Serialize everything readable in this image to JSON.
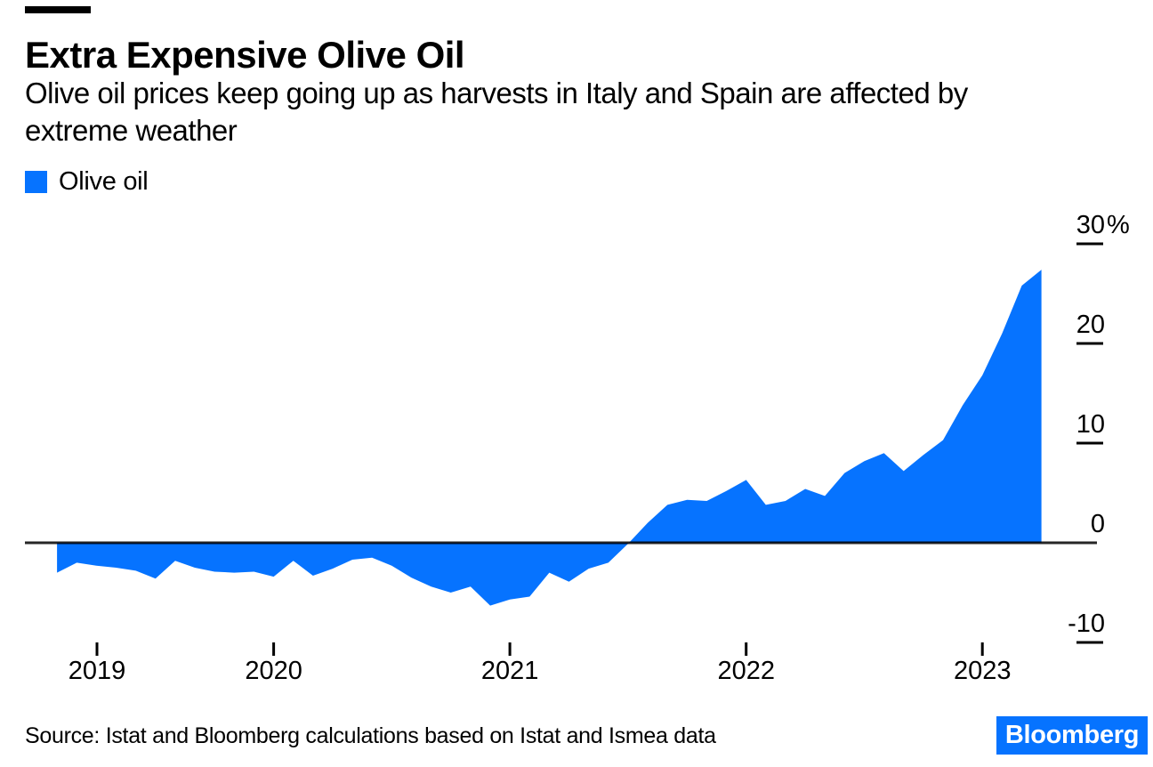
{
  "header": {
    "title": "Extra Expensive Olive Oil",
    "subtitle_lines": [
      "Olive oil prices keep going up as harvests in Italy and Spain are affected by",
      "extreme weather"
    ]
  },
  "legend": {
    "label": "Olive oil",
    "swatch_color": "#0673ff"
  },
  "source": {
    "text": "Source: Istat and Bloomberg calculations based on Istat and Ismea data"
  },
  "logo": {
    "text": "Bloomberg",
    "bg_color": "#0673ff",
    "text_color": "#ffffff"
  },
  "chart_data": {
    "type": "area",
    "series_name": "Olive oil",
    "unit": "%",
    "title": "Olive oil price change (%)",
    "area_color": "#0673ff",
    "baseline_value": 0,
    "ylim": [
      -13,
      32
    ],
    "grid": false,
    "legend_position": "top-left",
    "y_axis_side": "right",
    "y_ticks": [
      {
        "value": 30,
        "label": "30",
        "suffix": "%"
      },
      {
        "value": 20,
        "label": "20",
        "suffix": ""
      },
      {
        "value": 10,
        "label": "10",
        "suffix": ""
      },
      {
        "value": 0,
        "label": "0",
        "suffix": ""
      },
      {
        "value": -10,
        "label": "-10",
        "suffix": ""
      }
    ],
    "x_tick_labels": [
      "2019",
      "2020",
      "2021",
      "2022",
      "2023"
    ],
    "x": [
      "2019-02",
      "2019-03",
      "2019-04",
      "2019-05",
      "2019-06",
      "2019-07",
      "2019-08",
      "2019-09",
      "2019-10",
      "2019-11",
      "2019-12",
      "2020-01",
      "2020-02",
      "2020-03",
      "2020-04",
      "2020-05",
      "2020-06",
      "2020-07",
      "2020-08",
      "2020-09",
      "2020-10",
      "2020-11",
      "2020-12",
      "2021-01",
      "2021-02",
      "2021-03",
      "2021-04",
      "2021-05",
      "2021-06",
      "2021-07",
      "2021-08",
      "2021-09",
      "2021-10",
      "2021-11",
      "2021-12",
      "2022-01",
      "2022-02",
      "2022-03",
      "2022-04",
      "2022-05",
      "2022-06",
      "2022-07",
      "2022-08",
      "2022-09",
      "2022-10",
      "2022-11",
      "2022-12",
      "2023-01",
      "2023-02",
      "2023-03",
      "2023-04"
    ],
    "values": [
      -3.0,
      -2.0,
      -2.3,
      -2.5,
      -2.8,
      -3.6,
      -1.8,
      -2.5,
      -2.9,
      -3.0,
      -2.9,
      -3.4,
      -1.8,
      -3.3,
      -2.6,
      -1.7,
      -1.5,
      -2.3,
      -3.5,
      -4.4,
      -5.0,
      -4.4,
      -6.3,
      -5.7,
      -5.4,
      -3.0,
      -3.9,
      -2.6,
      -2.0,
      -0.1,
      2.0,
      3.8,
      4.3,
      4.2,
      5.2,
      6.3,
      3.8,
      4.2,
      5.4,
      4.7,
      7.0,
      8.2,
      9.0,
      7.2,
      8.8,
      10.3,
      13.8,
      16.8,
      21.0,
      25.8,
      27.4
    ]
  }
}
